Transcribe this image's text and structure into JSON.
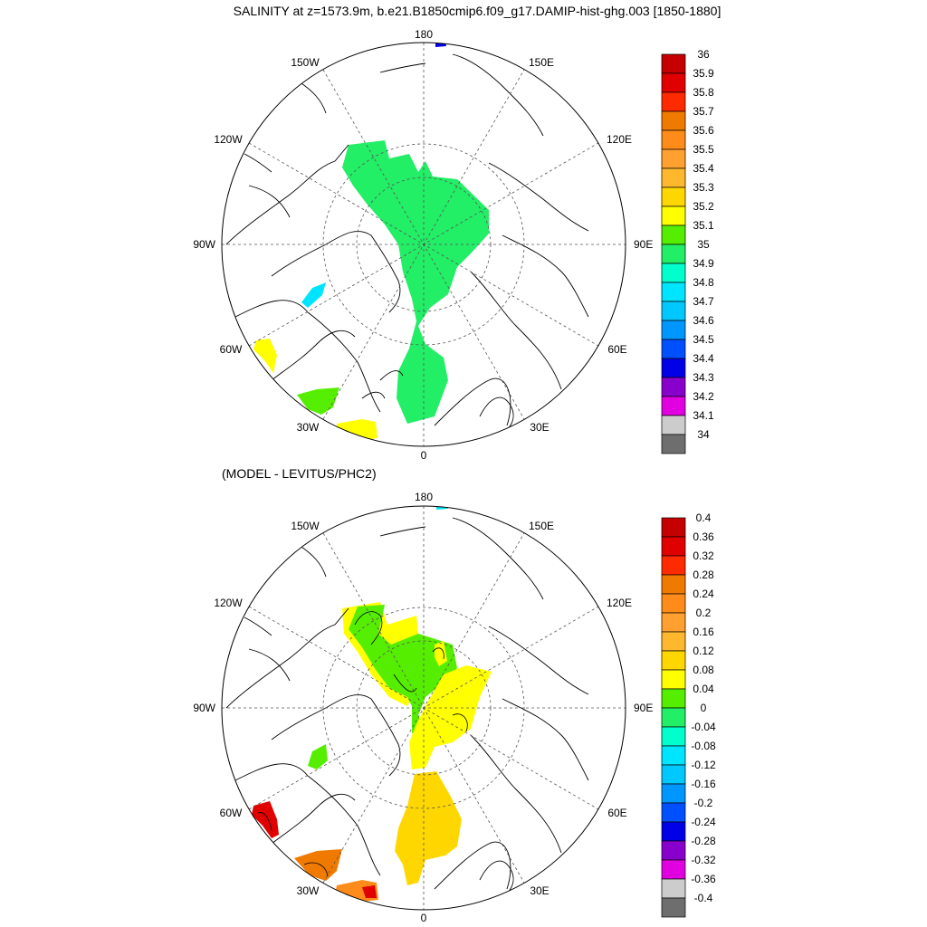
{
  "title": "SALINITY at z=1573.9m, b.e21.B1850cmip6.f09_g17.DAMIP-hist-ghg.003 [1850-1880]",
  "subtitle": "(MODEL - LEVITUS/PHC2)",
  "longitude_labels": {
    "top": "180",
    "bottom": "0",
    "left": "90W",
    "right": "90E",
    "upper_left": "150W",
    "upper_left2": "120W",
    "upper_right": "150E",
    "upper_right2": "120E",
    "lower_left": "60W",
    "lower_left2": "30W",
    "lower_right": "60E",
    "lower_right2": "30E"
  },
  "colors": {
    "land_outline": "#000000",
    "graticule": "#555555",
    "frame": "#000000"
  },
  "top_colorbar": {
    "labels": [
      "36",
      "35.9",
      "35.8",
      "35.7",
      "35.6",
      "35.5",
      "35.4",
      "35.3",
      "35.2",
      "35.1",
      "35",
      "34.9",
      "34.8",
      "34.7",
      "34.6",
      "34.5",
      "34.4",
      "34.3",
      "34.2",
      "34.1",
      "34"
    ],
    "colors": [
      "#c40000",
      "#e00000",
      "#ff2a00",
      "#f07a00",
      "#ff8c1a",
      "#ffa030",
      "#ffb82e",
      "#ffd700",
      "#ffff00",
      "#55ee00",
      "#22ee66",
      "#00ffcc",
      "#00e5ff",
      "#00c8ff",
      "#0096ff",
      "#0050ff",
      "#0000e6",
      "#8800cc",
      "#e000e0",
      "#cccccc",
      "#6e6e6e"
    ]
  },
  "bottom_colorbar": {
    "labels": [
      "0.4",
      "0.36",
      "0.32",
      "0.28",
      "0.24",
      "0.2",
      "0.16",
      "0.12",
      "0.08",
      "0.04",
      "0",
      "-0.04",
      "-0.08",
      "-0.12",
      "-0.16",
      "-0.2",
      "-0.24",
      "-0.28",
      "-0.32",
      "-0.36",
      "-0.4"
    ],
    "colors": [
      "#c40000",
      "#e00000",
      "#ff2a00",
      "#f07a00",
      "#ff8c1a",
      "#ffa030",
      "#ffb82e",
      "#ffd700",
      "#ffff00",
      "#55ee00",
      "#22ee66",
      "#00ffcc",
      "#00e5ff",
      "#00c8ff",
      "#0096ff",
      "#0050ff",
      "#0000e6",
      "#8800cc",
      "#e000e0",
      "#cccccc",
      "#6e6e6e"
    ]
  },
  "top_map_fill": {
    "central_green": "#22ee66",
    "south_green": "#55ee00",
    "yellow": "#ffff00",
    "cyan": "#00e5ff",
    "blue_small": "#0000e6"
  },
  "bottom_map_fill": {
    "yellow": "#ffff00",
    "green": "#55ee00",
    "gold": "#ffd700",
    "red": "#e00000",
    "orange": "#f07a00",
    "light_orange": "#ff8c1a",
    "cyan_small": "#00e5ff"
  }
}
